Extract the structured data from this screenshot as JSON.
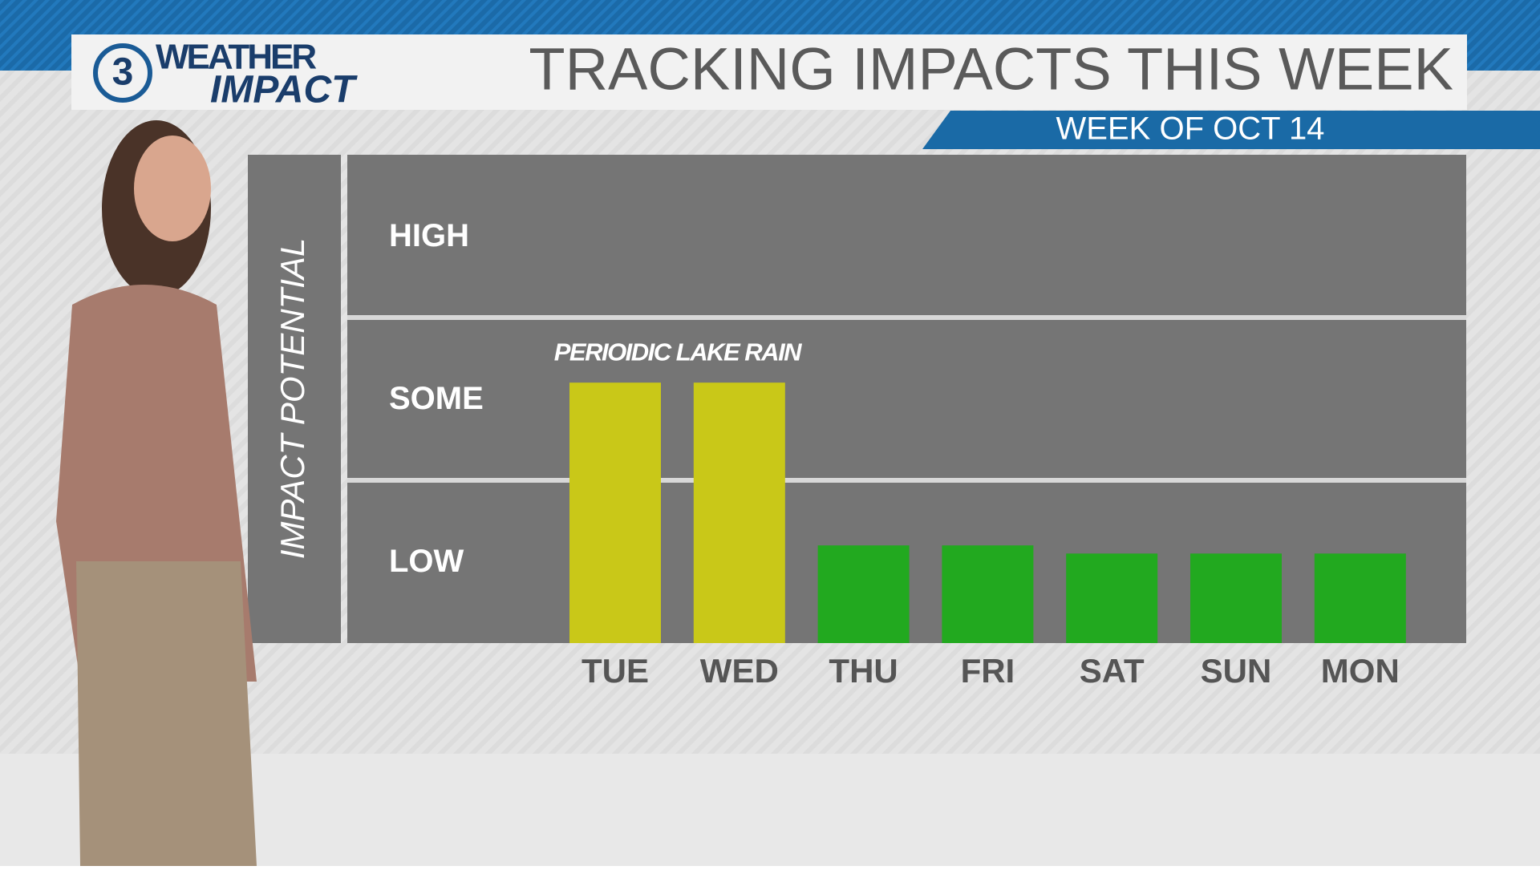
{
  "logo": {
    "number": "3",
    "line1": "WEATHER",
    "line2": "IMPACT"
  },
  "chart_data": {
    "type": "bar",
    "title": "TRACKING IMPACTS THIS WEEK",
    "subtitle": "WEEK OF OCT 14",
    "y_label": "IMPACT POTENTIAL",
    "annotation": "PERIOIDIC LAKE RAIN",
    "categories": [
      "TUE",
      "WED",
      "THU",
      "FRI",
      "SAT",
      "SUN",
      "MON"
    ],
    "values": [
      1.6,
      1.6,
      0.6,
      0.6,
      0.55,
      0.55,
      0.55
    ],
    "colors": [
      "#c9c818",
      "#c9c818",
      "#22a91f",
      "#22a91f",
      "#22a91f",
      "#22a91f",
      "#22a91f"
    ],
    "ylim": [
      0,
      3
    ],
    "yticks": [
      {
        "value": 0.5,
        "label": "LOW"
      },
      {
        "value": 1.5,
        "label": "SOME"
      },
      {
        "value": 2.5,
        "label": "HIGH"
      }
    ]
  }
}
